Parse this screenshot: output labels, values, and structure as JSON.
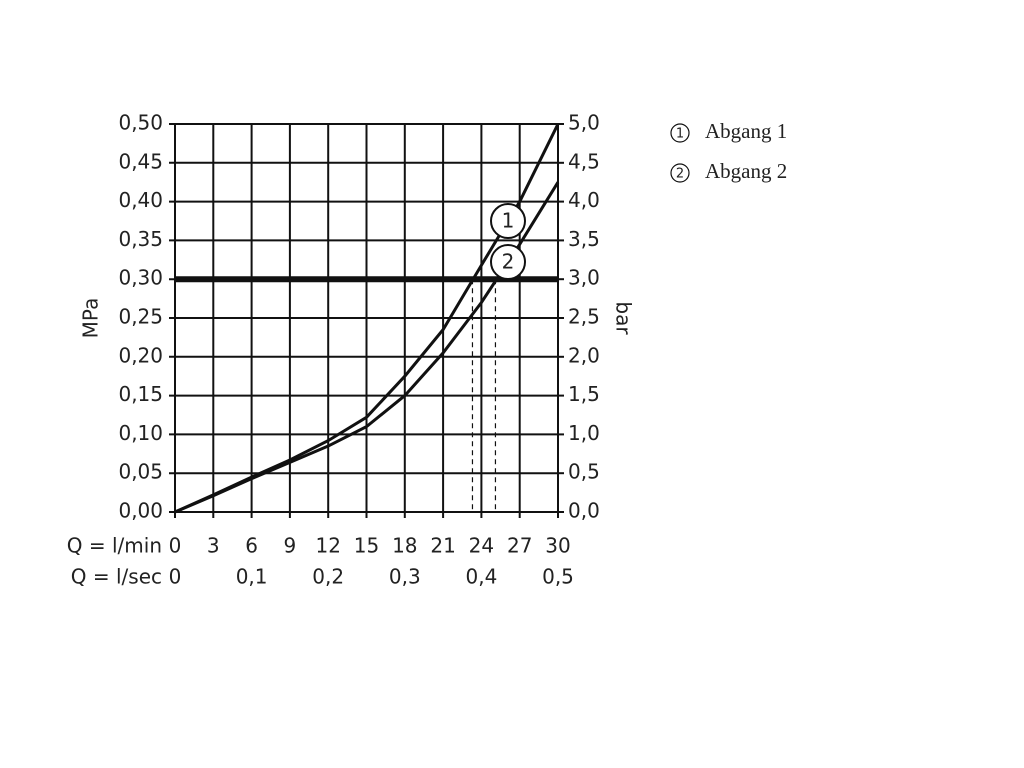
{
  "chart_data": {
    "type": "line",
    "x_label": "Q = l/min",
    "x2_label": "Q = l/sec",
    "y_label": "MPa",
    "y2_label": "bar",
    "x": [
      0,
      3,
      6,
      9,
      12,
      15,
      18,
      21,
      24,
      27,
      30
    ],
    "xlim": [
      0,
      30
    ],
    "xticks": [
      0,
      3,
      6,
      9,
      12,
      15,
      18,
      21,
      24,
      27,
      30
    ],
    "x2lim": [
      0,
      0.5
    ],
    "x2ticks": [
      0,
      {
        "value": 0.1,
        "label": "0,1"
      },
      {
        "value": 0.2,
        "label": "0,2"
      },
      {
        "value": 0.3,
        "label": "0,3"
      },
      {
        "value": 0.4,
        "label": "0,4"
      },
      {
        "value": 0.5,
        "label": "0,5"
      }
    ],
    "ylim": [
      0,
      0.5
    ],
    "yticks": [
      {
        "value": 0,
        "label": "0,00"
      },
      {
        "value": 0.05,
        "label": "0,05"
      },
      {
        "value": 0.1,
        "label": "0,10"
      },
      {
        "value": 0.15,
        "label": "0,15"
      },
      {
        "value": 0.2,
        "label": "0,20"
      },
      {
        "value": 0.25,
        "label": "0,25"
      },
      {
        "value": 0.3,
        "label": "0,30"
      },
      {
        "value": 0.35,
        "label": "0,35"
      },
      {
        "value": 0.4,
        "label": "0,40"
      },
      {
        "value": 0.45,
        "label": "0,45"
      },
      {
        "value": 0.5,
        "label": "0,50"
      }
    ],
    "y2lim": [
      0,
      5
    ],
    "y2ticks": [
      {
        "value": 0,
        "label": "0,0"
      },
      {
        "value": 0.5,
        "label": "0,5"
      },
      {
        "value": 1,
        "label": "1,0"
      },
      {
        "value": 1.5,
        "label": "1,5"
      },
      {
        "value": 2,
        "label": "2,0"
      },
      {
        "value": 2.5,
        "label": "2,5"
      },
      {
        "value": 3,
        "label": "3,0"
      },
      {
        "value": 3.5,
        "label": "3,5"
      },
      {
        "value": 4,
        "label": "4,0"
      },
      {
        "value": 4.5,
        "label": "4,5"
      },
      {
        "value": 5,
        "label": "5,0"
      }
    ],
    "grid": true,
    "reference_line": 0.3,
    "drop_lines": [
      23.3,
      25.1
    ],
    "series": [
      {
        "name": "Abgang 1",
        "marker": "1",
        "color": "#111111",
        "values": [
          0,
          0.022,
          0.045,
          0.067,
          0.092,
          0.122,
          0.175,
          0.235,
          0.318,
          0.4,
          0.5
        ]
      },
      {
        "name": "Abgang 2",
        "marker": "2",
        "color": "#111111",
        "values": [
          0,
          0.021,
          0.043,
          0.064,
          0.085,
          0.11,
          0.15,
          0.205,
          0.27,
          0.345,
          0.425
        ]
      }
    ]
  }
}
